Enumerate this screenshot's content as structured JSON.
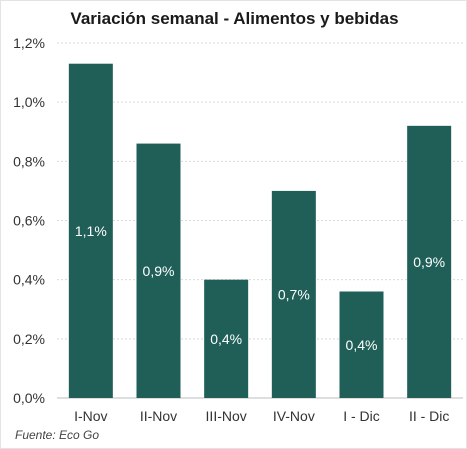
{
  "chart_data": {
    "type": "bar",
    "title": "Variación semanal - Alimentos y bebidas",
    "categories": [
      "I-Nov",
      "II-Nov",
      "III-Nov",
      "IV-Nov",
      "I - Dic",
      "II - Dic"
    ],
    "values": [
      1.13,
      0.86,
      0.4,
      0.7,
      0.36,
      0.92
    ],
    "data_labels": [
      "1,1%",
      "0,9%",
      "0,4%",
      "0,7%",
      "0,4%",
      "0,9%"
    ],
    "y_ticks": [
      0,
      0.2,
      0.4,
      0.6,
      0.8,
      1.0,
      1.2
    ],
    "y_tick_labels": [
      "0,0%",
      "0,2%",
      "0,4%",
      "0,6%",
      "0,8%",
      "1,0%",
      "1,2%"
    ],
    "ylim": [
      0,
      1.2
    ],
    "grid": true,
    "legend": "none",
    "bar_color": "#1f5f58",
    "grid_color": "#d9d9d9",
    "source": "Fuente: Eco Go"
  }
}
